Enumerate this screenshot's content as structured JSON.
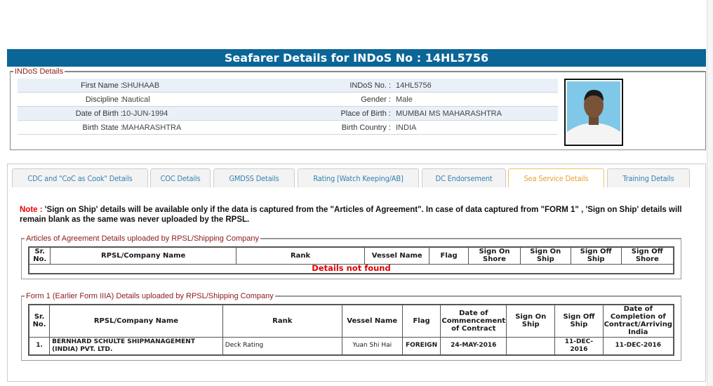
{
  "header": {
    "title": "Seafarer Details for INDoS No : 14HL5756"
  },
  "indos": {
    "legend": "INDoS Details",
    "rows": [
      {
        "l1": "First Name :",
        "v1": "SHUHAAB",
        "l2": "INDoS No. :",
        "v2": "14HL5756"
      },
      {
        "l1": "Discipline :",
        "v1": "Nautical",
        "l2": "Gender :",
        "v2": "Male"
      },
      {
        "l1": "Date of Birth :",
        "v1": "10-JUN-1994",
        "l2": "Place of Birth :",
        "v2": "MUMBAI MS MAHARASHTRA"
      },
      {
        "l1": "Birth State :",
        "v1": "MAHARASHTRA",
        "l2": "Birth Country :",
        "v2": "INDIA"
      }
    ]
  },
  "tabs": [
    {
      "label": "CDC and \"CoC as Cook\" Details"
    },
    {
      "label": "COC Details"
    },
    {
      "label": "GMDSS Details"
    },
    {
      "label": "Rating [Watch Keeping/AB]"
    },
    {
      "label": "DC Endorsement"
    },
    {
      "label": "Sea Service Details",
      "active": true
    },
    {
      "label": "Training Details"
    }
  ],
  "note": {
    "prefix": "Note :",
    "text": " 'Sign on Ship' details will be available only if the data is captured from the \"Articles of Agreement\". In case of data captured from \"FORM 1\" , 'Sign on Ship' details will remain blank as the same was never uploaded by the RPSL."
  },
  "articles": {
    "legend": "Articles of Agreement Details uploaded by RPSL/Shipping Company",
    "headers": [
      "Sr. No.",
      "RPSL/Company Name",
      "Rank",
      "Vessel Name",
      "Flag",
      "Sign On Shore",
      "Sign On Ship",
      "Sign Off Ship",
      "Sign Off Shore"
    ],
    "empty": "Details not found"
  },
  "form1": {
    "legend": "Form 1 (Earlier Form IIIA) Details uploaded by RPSL/Shipping Company",
    "headers": [
      "Sr. No.",
      "RPSL/Company Name",
      "Rank",
      "Vessel Name",
      "Flag",
      "Date of Commencement of Contract",
      "Sign On Ship",
      "Sign Off Ship",
      "Date of Completion of Contract/Arriving India"
    ],
    "rows": [
      [
        "1.",
        "BERNHARD SCHULTE SHIPMANAGEMENT (INDIA) PVT. LTD.",
        "Deck Rating",
        "Yuan Shi Hai",
        "FOREIGN",
        "24-MAY-2016",
        "",
        "11-DEC-2016",
        "11-DEC-2016"
      ]
    ]
  },
  "colors": {
    "header_bg": "#0b6597",
    "legend": "#8b1a1a",
    "tab_text": "#3582b3",
    "tab_active": "#e8a030",
    "alert": "#dd0000"
  }
}
